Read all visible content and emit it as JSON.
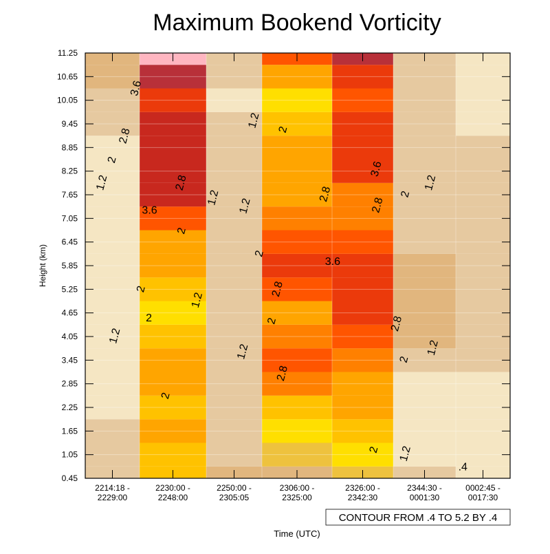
{
  "chart_data": {
    "type": "heatmap",
    "title": "Maximum Bookend Vorticity",
    "xlabel": "Time (UTC)",
    "ylabel": "Height (km)",
    "x_categories": [
      "2214:18 -\n2229:00",
      "2230:00 -\n2248:00",
      "2250:00 -\n2305:05",
      "2306:00 -\n2325:00",
      "2326:00 -\n2342:30",
      "2344:30 -\n0001:30",
      "0002:45 -\n0017:30"
    ],
    "y_ticks": [
      "0.45",
      "1.05",
      "1.65",
      "2.25",
      "2.85",
      "3.45",
      "4.05",
      "4.65",
      "5.25",
      "5.85",
      "6.45",
      "7.05",
      "7.65",
      "8.25",
      "8.85",
      "9.45",
      "10.05",
      "10.65",
      "11.25"
    ],
    "ylim": [
      0.45,
      11.25
    ],
    "contour_info": "CONTOUR FROM .4 TO 5.2 BY .4",
    "grid": true,
    "color_levels": [
      {
        "value": 0.6,
        "color": "#F5E6C3"
      },
      {
        "value": 1.0,
        "color": "#E6C9A0"
      },
      {
        "value": 1.4,
        "color": "#E1B67E"
      },
      {
        "value": 1.8,
        "color": "#EEC23E"
      },
      {
        "value": 2.0,
        "color": "#FFDF00"
      },
      {
        "value": 2.2,
        "color": "#FFC200"
      },
      {
        "value": 2.6,
        "color": "#FFA500"
      },
      {
        "value": 3.0,
        "color": "#FF8000"
      },
      {
        "value": 3.4,
        "color": "#FF5500"
      },
      {
        "value": 3.8,
        "color": "#EB3A0B"
      },
      {
        "value": 4.2,
        "color": "#C8281E"
      },
      {
        "value": 4.6,
        "color": "#B83039"
      },
      {
        "value": 5.0,
        "color": "#FFB6C1"
      }
    ],
    "values_bottom_to_top": [
      [
        1.0,
        1.0,
        1.0,
        0.6,
        0.6,
        0.6,
        0.6,
        0.6,
        0.6,
        0.6,
        0.6,
        0.6,
        0.6,
        0.6,
        0.6,
        1.0,
        1.0,
        1.4,
        1.4
      ],
      [
        2.2,
        2.2,
        2.6,
        2.2,
        2.6,
        2.6,
        2.2,
        2.0,
        2.2,
        2.6,
        2.6,
        3.4,
        4.2,
        4.2,
        4.2,
        4.2,
        3.8,
        4.6,
        5.0
      ],
      [
        1.4,
        1.0,
        1.0,
        1.0,
        1.0,
        1.0,
        1.0,
        1.0,
        1.0,
        1.0,
        1.0,
        1.0,
        1.0,
        1.0,
        1.0,
        1.0,
        0.6,
        1.0,
        1.0
      ],
      [
        1.4,
        1.8,
        2.0,
        2.2,
        3.0,
        3.4,
        3.0,
        2.6,
        3.4,
        3.8,
        3.4,
        3.0,
        2.6,
        2.6,
        2.6,
        2.2,
        2.0,
        2.6,
        3.4
      ],
      [
        1.8,
        2.0,
        2.2,
        2.6,
        2.6,
        3.0,
        3.4,
        3.8,
        3.8,
        3.8,
        3.4,
        3.0,
        3.0,
        3.8,
        3.8,
        3.8,
        3.4,
        3.8,
        4.6
      ],
      [
        1.0,
        0.6,
        0.6,
        0.6,
        0.6,
        1.0,
        1.4,
        1.4,
        1.4,
        1.4,
        1.0,
        1.0,
        1.0,
        1.0,
        1.0,
        1.0,
        1.0,
        1.0,
        1.0
      ],
      [
        0.6,
        0.6,
        0.6,
        0.6,
        0.6,
        1.0,
        1.0,
        1.0,
        1.0,
        1.0,
        1.0,
        1.0,
        1.0,
        1.0,
        1.0,
        0.6,
        0.6,
        0.6,
        0.6
      ]
    ],
    "contour_labels": [
      {
        "text": "3.6",
        "x": 0.92,
        "y": 10.36
      },
      {
        "text": "2.8",
        "x": 0.71,
        "y": 9.15
      },
      {
        "text": "2",
        "x": 0.48,
        "y": 8.54
      },
      {
        "text": "1.2",
        "x": 0.29,
        "y": 7.96
      },
      {
        "text": "3.6",
        "x": 1.15,
        "y": 7.27
      },
      {
        "text": "2.8",
        "x": 1.61,
        "y": 7.96
      },
      {
        "text": "2",
        "x": 1.62,
        "y": 6.74
      },
      {
        "text": "1.2",
        "x": 2.11,
        "y": 7.58
      },
      {
        "text": "1.2",
        "x": 2.68,
        "y": 7.37
      },
      {
        "text": "1.2",
        "x": 2.84,
        "y": 9.54
      },
      {
        "text": "2",
        "x": 3.29,
        "y": 9.31
      },
      {
        "text": "2",
        "x": 2.94,
        "y": 6.16
      },
      {
        "text": "2.8",
        "x": 3.89,
        "y": 7.67
      },
      {
        "text": "3.6",
        "x": 4.01,
        "y": 5.97
      },
      {
        "text": "3.6",
        "x": 4.71,
        "y": 8.31
      },
      {
        "text": "2.8",
        "x": 4.73,
        "y": 7.39
      },
      {
        "text": "2",
        "x": 5.18,
        "y": 7.67
      },
      {
        "text": "1.2",
        "x": 5.58,
        "y": 7.96
      },
      {
        "text": "2",
        "x": 1.01,
        "y": 5.26
      },
      {
        "text": "2",
        "x": 1.14,
        "y": 4.54
      },
      {
        "text": "1.2",
        "x": 1.85,
        "y": 4.98
      },
      {
        "text": "1.2",
        "x": 0.53,
        "y": 4.07
      },
      {
        "text": "2",
        "x": 1.38,
        "y": 2.55
      },
      {
        "text": "1.2",
        "x": 2.64,
        "y": 3.67
      },
      {
        "text": "2.8",
        "x": 3.21,
        "y": 5.26
      },
      {
        "text": "2",
        "x": 3.13,
        "y": 4.45
      },
      {
        "text": "2.8",
        "x": 3.28,
        "y": 3.12
      },
      {
        "text": "2.8",
        "x": 5.04,
        "y": 4.38
      },
      {
        "text": "2",
        "x": 5.16,
        "y": 3.47
      },
      {
        "text": "1.2",
        "x": 5.62,
        "y": 3.77
      },
      {
        "text": "2",
        "x": 4.67,
        "y": 1.18
      },
      {
        "text": "1.2",
        "x": 5.18,
        "y": 1.08
      },
      {
        "text": ".4",
        "x": 6.13,
        "y": 0.76
      }
    ]
  }
}
